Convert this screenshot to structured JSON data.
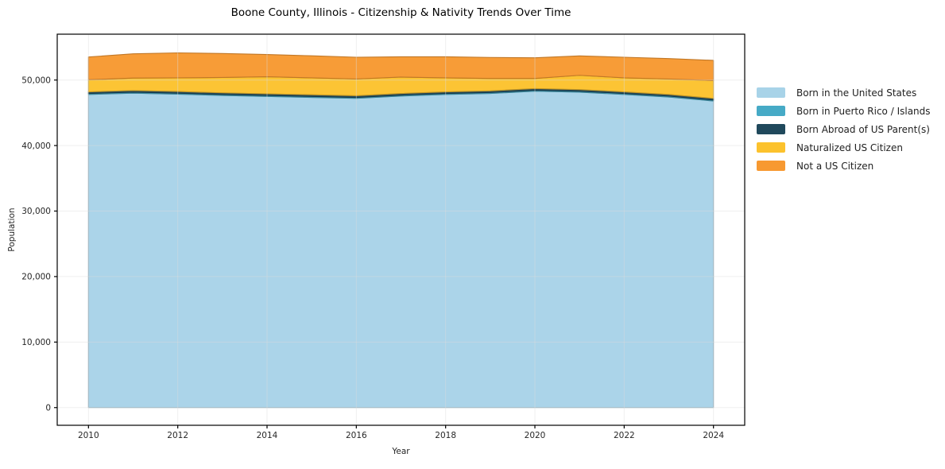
{
  "title": "Boone County, Illinois - Citizenship & Nativity Trends Over Time",
  "chart_data": {
    "type": "area",
    "stacked": true,
    "title": "Boone County, Illinois - Citizenship & Nativity Trends Over Time",
    "xlabel": "Year",
    "ylabel": "Population",
    "x": [
      2010,
      2011,
      2012,
      2013,
      2014,
      2015,
      2016,
      2017,
      2018,
      2019,
      2020,
      2021,
      2022,
      2023,
      2024
    ],
    "series": [
      {
        "name": "Born in the United States",
        "color": "#a8d3e8",
        "values": [
          47800,
          48000,
          47850,
          47650,
          47500,
          47350,
          47200,
          47550,
          47800,
          47950,
          48300,
          48150,
          47800,
          47400,
          46800
        ]
      },
      {
        "name": "Born in Puerto Rico / Islands",
        "color": "#46aac6",
        "values": [
          150,
          150,
          150,
          150,
          150,
          150,
          150,
          150,
          150,
          150,
          150,
          150,
          150,
          150,
          150
        ]
      },
      {
        "name": "Born Abroad of US Parent(s)",
        "color": "#20495c",
        "values": [
          250,
          250,
          250,
          250,
          250,
          250,
          250,
          250,
          250,
          250,
          250,
          250,
          250,
          250,
          250
        ]
      },
      {
        "name": "Naturalized US Citizen",
        "color": "#fcc22d",
        "values": [
          1840,
          1900,
          2080,
          2350,
          2600,
          2580,
          2560,
          2500,
          2130,
          1890,
          1540,
          2170,
          2130,
          2360,
          2720
        ]
      },
      {
        "name": "Not a US Citizen",
        "color": "#f79931",
        "values": [
          3480,
          3700,
          3820,
          3650,
          3400,
          3370,
          3320,
          3100,
          3220,
          3210,
          3160,
          2960,
          3150,
          3120,
          3080
        ]
      }
    ],
    "xlim": [
      2009.3,
      2024.7
    ],
    "ylim": [
      -2700,
      57000
    ],
    "x_ticks": [
      2010,
      2012,
      2014,
      2016,
      2018,
      2020,
      2022,
      2024
    ],
    "x_tick_labels": [
      "2010",
      "2012",
      "2014",
      "2016",
      "2018",
      "2020",
      "2022",
      "2024"
    ],
    "y_ticks": [
      0,
      10000,
      20000,
      30000,
      40000,
      50000
    ],
    "y_tick_labels": [
      "0",
      "10,000",
      "20,000",
      "30,000",
      "40,000",
      "50,000"
    ],
    "grid": true,
    "grid_color": "#dcdcdc",
    "spine_color": "#000000",
    "legend_position": "right of plot, frameless"
  }
}
